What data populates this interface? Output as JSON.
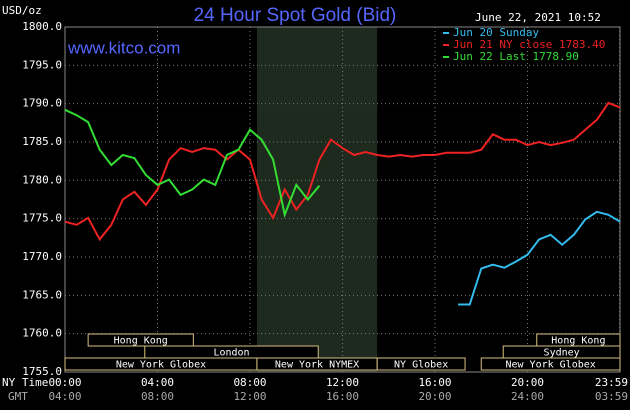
{
  "chart_data": {
    "type": "line",
    "title": "24 Hour Spot Gold (Bid)",
    "unit_label": "USD/oz",
    "site": "www.kitco.com",
    "timestamp": "June 22, 2021 10:52",
    "x_label": "NY Time",
    "x2_label": "GMT",
    "x": [
      0,
      0.5,
      1,
      1.5,
      2,
      2.5,
      3,
      3.5,
      4,
      4.5,
      5,
      5.5,
      6,
      6.5,
      7,
      7.5,
      8,
      8.5,
      9,
      9.5,
      10,
      10.5,
      11,
      11.5,
      12,
      12.5,
      13,
      13.5,
      14,
      14.5,
      15,
      15.5,
      16,
      16.5,
      17,
      17.5,
      18,
      18.5,
      19,
      19.5,
      20,
      20.5,
      21,
      21.5,
      22,
      22.5,
      23,
      23.5,
      24
    ],
    "series": [
      {
        "name": "Jun 20 Sunday",
        "color": "#33bbee",
        "values": [
          null,
          null,
          null,
          null,
          null,
          null,
          null,
          null,
          null,
          null,
          null,
          null,
          null,
          null,
          null,
          null,
          null,
          null,
          null,
          null,
          null,
          null,
          null,
          null,
          null,
          null,
          null,
          null,
          null,
          null,
          null,
          null,
          null,
          null,
          1763.8,
          1763.8,
          1768.5,
          1769.0,
          1768.6,
          1769.4,
          1770.3,
          1772.3,
          1772.9,
          1771.6,
          1772.9,
          1774.9,
          1775.9,
          1775.5,
          1774.6
        ]
      },
      {
        "name": "Jun 21 NY close 1783.40",
        "color": "#ee2222",
        "values": [
          1774.6,
          1774.2,
          1775.1,
          1772.3,
          1774.2,
          1777.5,
          1778.5,
          1776.8,
          1778.8,
          1782.7,
          1784.2,
          1783.7,
          1784.2,
          1784.0,
          1782.7,
          1784.0,
          1782.7,
          1777.5,
          1775.1,
          1778.8,
          1776.2,
          1778.1,
          1782.7,
          1785.3,
          1784.2,
          1783.3,
          1783.7,
          1783.3,
          1783.1,
          1783.3,
          1783.1,
          1783.3,
          1783.3,
          1783.6,
          1783.6,
          1783.6,
          1784.0,
          1786.0,
          1785.3,
          1785.3,
          1784.6,
          1785.0,
          1784.6,
          1784.9,
          1785.3,
          1786.6,
          1787.9,
          1790.1,
          1789.5
        ]
      },
      {
        "name": "Jun 22 Last 1778.90",
        "color": "#33dd33",
        "values": [
          1789.2,
          1788.5,
          1787.6,
          1784.0,
          1782.0,
          1783.3,
          1782.9,
          1780.7,
          1779.4,
          1780.1,
          1778.1,
          1778.8,
          1780.1,
          1779.4,
          1783.3,
          1784.0,
          1786.6,
          1785.3,
          1782.7,
          1775.5,
          1779.4,
          1777.5,
          1779.3,
          null,
          null,
          null,
          null,
          null,
          null,
          null,
          null,
          null,
          null,
          null,
          null,
          null,
          null,
          null,
          null,
          null,
          null,
          null,
          null,
          null,
          null,
          null,
          null,
          null,
          null
        ]
      }
    ],
    "xlim": [
      0,
      24
    ],
    "xticks": [
      {
        "value": 0,
        "label": "00:00"
      },
      {
        "value": 4,
        "label": "04:00"
      },
      {
        "value": 8,
        "label": "08:00"
      },
      {
        "value": 12,
        "label": "12:00"
      },
      {
        "value": 16,
        "label": "16:00"
      },
      {
        "value": 20,
        "label": "20:00"
      },
      {
        "value": 23.98,
        "label": "23:59"
      }
    ],
    "x2ticks": [
      {
        "value": 0,
        "label": "04:00"
      },
      {
        "value": 4,
        "label": "08:00"
      },
      {
        "value": 8,
        "label": "12:00"
      },
      {
        "value": 12,
        "label": "16:00"
      },
      {
        "value": 16,
        "label": "20:00"
      },
      {
        "value": 20,
        "label": "24:00"
      },
      {
        "value": 23.98,
        "label": "03:59"
      }
    ],
    "ylim": [
      1755,
      1800
    ],
    "yticks": [
      {
        "value": 1755,
        "label": "1755.0"
      },
      {
        "value": 1760,
        "label": "1760.0"
      },
      {
        "value": 1765,
        "label": "1765.0"
      },
      {
        "value": 1770,
        "label": "1770.0"
      },
      {
        "value": 1775,
        "label": "1775.0"
      },
      {
        "value": 1780,
        "label": "1780.0"
      },
      {
        "value": 1785,
        "label": "1785.0"
      },
      {
        "value": 1790,
        "label": "1790.0"
      },
      {
        "value": 1795,
        "label": "1795.0"
      },
      {
        "value": 1800,
        "label": "1800.0"
      }
    ],
    "grid": true,
    "highlight": [
      8.3,
      13.5
    ],
    "sessions": [
      {
        "label": "Hong Kong",
        "start": 1,
        "end": 5.55,
        "row": 0
      },
      {
        "label": "Hong Kong",
        "start": 20.4,
        "end": 24,
        "row": 0
      },
      {
        "label": "London",
        "start": 3.45,
        "end": 10.95,
        "row": 1
      },
      {
        "label": "Sydney",
        "start": 18.95,
        "end": 24,
        "row": 1
      },
      {
        "label": "New York Globex",
        "start": 0,
        "end": 8.3,
        "row": 2
      },
      {
        "label": "New York NYMEX",
        "start": 8.3,
        "end": 13.5,
        "row": 2
      },
      {
        "label": "NY Globex",
        "start": 13.5,
        "end": 17.3,
        "row": 2
      },
      {
        "label": "New York Globex",
        "start": 18,
        "end": 24,
        "row": 2
      }
    ]
  }
}
